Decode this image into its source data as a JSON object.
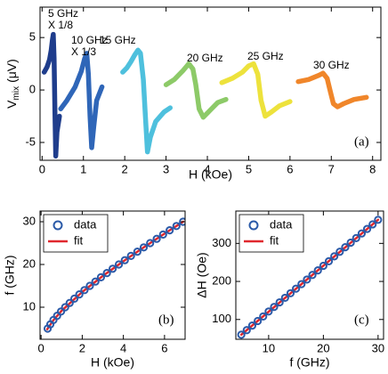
{
  "chart_data": [
    {
      "type": "line",
      "x_label": "H (kOe)",
      "y_label": {
        "main": "V",
        "sub": "mix",
        "unit": "(μV)"
      },
      "xlim": [
        -0.05,
        8.2
      ],
      "ylim": [
        -6.7,
        7.9
      ],
      "xticks": [
        0,
        1,
        2,
        3,
        4,
        5,
        6,
        7,
        8
      ],
      "yticks": [
        -5,
        0,
        5
      ],
      "annotations": [
        "5 GHz",
        "X 1/8",
        "10 GHz",
        "X 1/3",
        "15 GHz",
        "20 GHz",
        "25 GHz",
        "30 GHz"
      ],
      "panel_label": "(a)",
      "series": [
        {
          "style": "thick-line",
          "color": "#1f3d8c",
          "x": [
            0.05,
            0.12,
            0.18,
            0.22,
            0.25,
            0.27,
            0.29,
            0.31,
            0.33,
            0.36,
            0.42
          ],
          "values": [
            1.7,
            2.2,
            2.9,
            3.8,
            4.8,
            5.3,
            3.0,
            -2.0,
            -6.3,
            -4.0,
            -2.5
          ]
        },
        {
          "style": "thick-line",
          "color": "#2f66b8",
          "x": [
            0.45,
            0.6,
            0.8,
            0.95,
            1.03,
            1.08,
            1.12,
            1.16,
            1.2,
            1.25,
            1.32,
            1.45
          ],
          "values": [
            -1.8,
            -1.0,
            0.3,
            1.8,
            3.0,
            3.5,
            1.5,
            -2.5,
            -5.5,
            -3.5,
            -1.0,
            0.3
          ]
        },
        {
          "style": "thick-line",
          "color": "#4ec0dd",
          "x": [
            1.95,
            2.05,
            2.15,
            2.25,
            2.32,
            2.38,
            2.45,
            2.5,
            2.55,
            2.62,
            2.75,
            2.95,
            3.1
          ],
          "values": [
            1.7,
            2.1,
            2.7,
            3.4,
            3.8,
            3.5,
            1.0,
            -2.5,
            -5.9,
            -4.5,
            -3.0,
            -2.1,
            -1.7
          ]
        },
        {
          "style": "thick-line",
          "color": "#8dca68",
          "x": [
            3.0,
            3.2,
            3.4,
            3.55,
            3.65,
            3.72,
            3.8,
            3.9,
            4.05,
            4.25,
            4.45
          ],
          "values": [
            0.5,
            1.0,
            1.8,
            2.5,
            2.0,
            0.5,
            -1.8,
            -2.6,
            -2.0,
            -1.2,
            -0.9
          ]
        },
        {
          "style": "thick-line",
          "color": "#ede23c",
          "x": [
            4.35,
            4.6,
            4.85,
            5.0,
            5.12,
            5.22,
            5.3,
            5.4,
            5.55,
            5.75,
            6.0
          ],
          "values": [
            0.7,
            1.1,
            1.7,
            2.3,
            2.5,
            1.5,
            -1.0,
            -2.5,
            -2.1,
            -1.5,
            -1.1
          ]
        },
        {
          "style": "thick-line",
          "color": "#f0862a",
          "x": [
            6.2,
            6.45,
            6.7,
            6.8,
            6.9,
            6.98,
            7.05,
            7.15,
            7.3,
            7.55,
            7.85
          ],
          "values": [
            0.8,
            1.0,
            1.4,
            1.6,
            1.1,
            -0.2,
            -1.3,
            -1.6,
            -1.3,
            -0.9,
            -0.7
          ]
        }
      ]
    },
    {
      "type": "scatter",
      "x_label": "H (kOe)",
      "y_label": "f (GHz)",
      "xlim": [
        -0.05,
        7.0
      ],
      "ylim": [
        2.5,
        32.5
      ],
      "xticks": [
        0,
        2,
        4,
        6
      ],
      "yticks": [
        10,
        20,
        30
      ],
      "panel_label": "(b)",
      "legend": "upper left",
      "series": [
        {
          "name": "data",
          "style": "circle",
          "color": "#2b5aa8",
          "x": [
            0.32,
            0.45,
            0.6,
            0.78,
            0.97,
            1.17,
            1.39,
            1.62,
            1.86,
            2.11,
            2.37,
            2.64,
            2.91,
            3.2,
            3.48,
            3.78,
            4.07,
            4.37,
            4.68,
            4.99,
            5.3,
            5.62,
            5.93,
            6.25,
            6.58,
            6.9
          ],
          "values": [
            5,
            6,
            7,
            8,
            9,
            10,
            11,
            12,
            13,
            14,
            15,
            16,
            17,
            18,
            19,
            20,
            21,
            22,
            23,
            24,
            25,
            26,
            27,
            28,
            29,
            30
          ]
        },
        {
          "name": "fit",
          "style": "line",
          "color": "#e0282e",
          "x": [
            0.3,
            0.6,
            1,
            2,
            3,
            4,
            5,
            6,
            6.9
          ],
          "values": [
            4.86,
            6.97,
            9.18,
            13.57,
            17.31,
            20.76,
            24.04,
            27.21,
            30.0
          ]
        }
      ]
    },
    {
      "type": "scatter",
      "x_label": "f (GHz)",
      "y_label": "ΔH (Oe)",
      "xlim": [
        4,
        31
      ],
      "ylim": [
        48,
        385
      ],
      "xticks": [
        10,
        20,
        30
      ],
      "yticks": [
        100,
        200,
        300
      ],
      "panel_label": "(c)",
      "legend": "upper left",
      "series": [
        {
          "name": "data",
          "style": "circle",
          "color": "#2b5aa8",
          "x": [
            5,
            6,
            7,
            8,
            9,
            10,
            11,
            12,
            13,
            14,
            15,
            16,
            17,
            18,
            19,
            20,
            21,
            22,
            23,
            24,
            25,
            26,
            27,
            28,
            29,
            30
          ],
          "values": [
            60,
            72,
            84,
            96,
            108,
            121,
            133,
            145,
            157,
            169,
            181,
            193,
            205,
            217,
            229,
            241,
            253,
            266,
            278,
            290,
            302,
            314,
            326,
            338,
            350,
            362
          ]
        },
        {
          "name": "fit",
          "style": "line",
          "color": "#e0282e",
          "x": [
            5,
            30
          ],
          "values": [
            60,
            362
          ]
        }
      ]
    }
  ]
}
